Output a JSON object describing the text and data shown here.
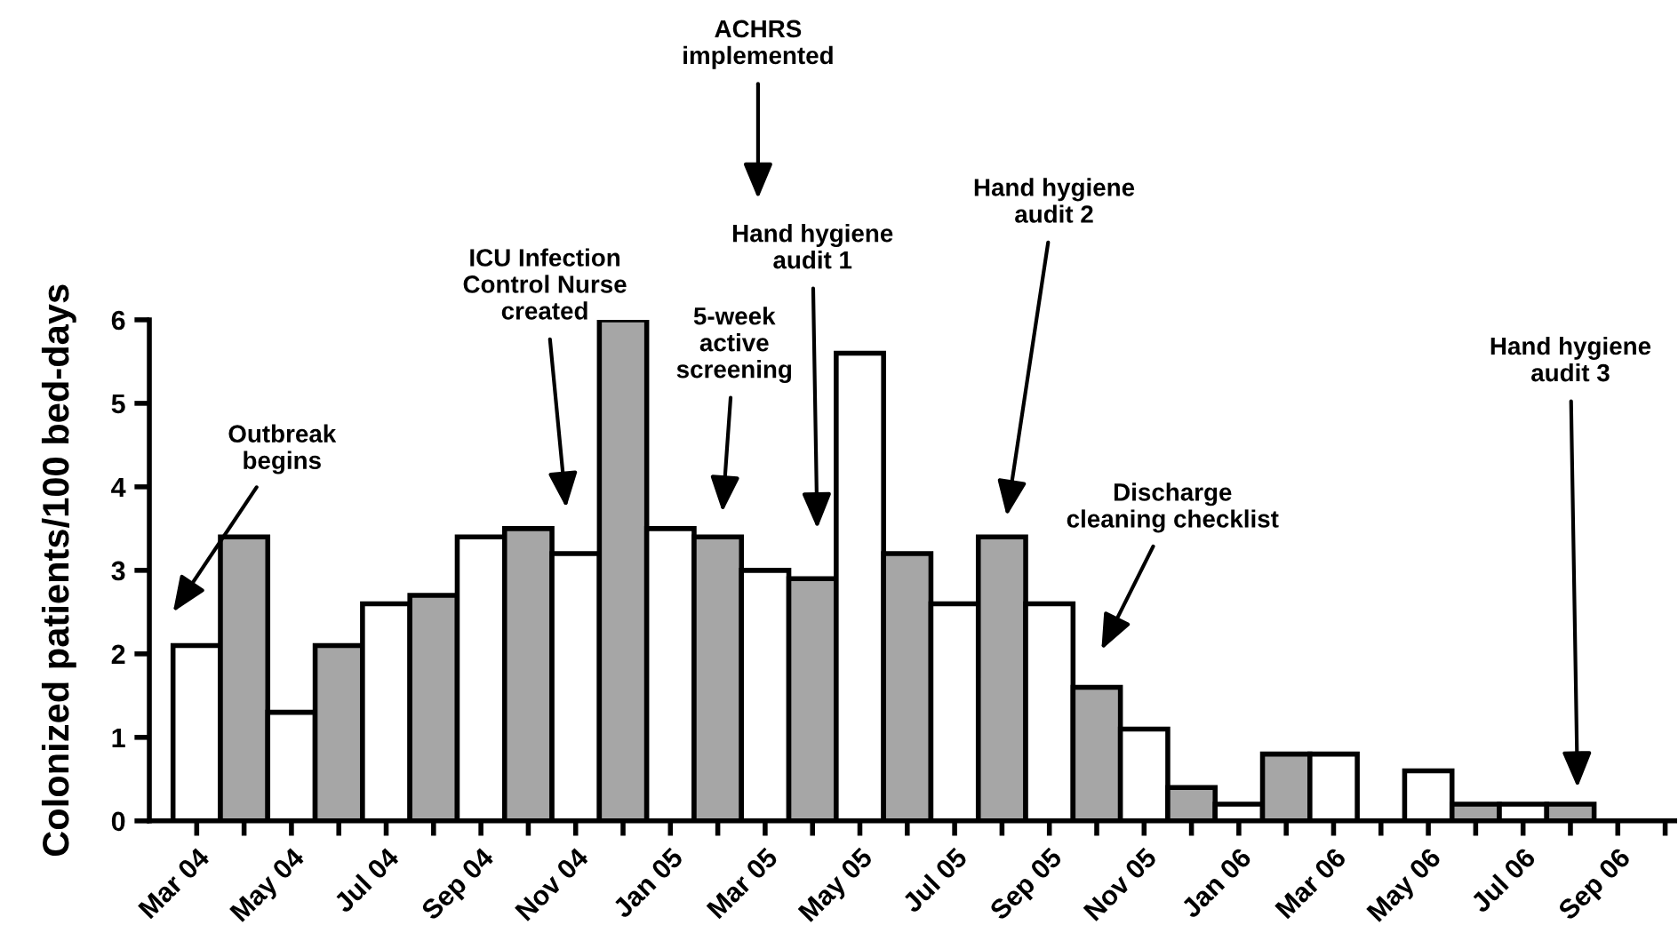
{
  "chart_data": {
    "type": "bar",
    "ylabel": "Colonized patients/100 bed-days",
    "categories": [
      "Mar 04",
      null,
      "May 04",
      null,
      "Jul 04",
      null,
      "Sep 04",
      null,
      "Nov 04",
      null,
      "Jan 05",
      null,
      "Mar 05",
      null,
      "May 05",
      null,
      "Jul 05",
      null,
      "Sep 05",
      null,
      "Nov 05",
      null,
      "Jan 06",
      null,
      "Mar 06",
      null,
      "May 06",
      null,
      "Jul 06",
      null,
      "Sep 06",
      null
    ],
    "values": [
      2.1,
      3.4,
      1.3,
      2.1,
      2.6,
      2.7,
      3.4,
      3.5,
      3.2,
      6.0,
      3.5,
      3.4,
      3.0,
      2.9,
      5.6,
      3.2,
      2.6,
      3.4,
      2.6,
      1.6,
      1.1,
      0.4,
      0.2,
      0.8,
      0.8,
      null,
      0.6,
      0.2,
      0.2,
      0.2,
      null,
      null
    ],
    "colors": [
      "#ffffff",
      "#a6a6a6",
      "#ffffff",
      "#a6a6a6",
      "#ffffff",
      "#a6a6a6",
      "#ffffff",
      "#a6a6a6",
      "#ffffff",
      "#a6a6a6",
      "#ffffff",
      "#a6a6a6",
      "#ffffff",
      "#a6a6a6",
      "#ffffff",
      "#a6a6a6",
      "#ffffff",
      "#a6a6a6",
      "#ffffff",
      "#a6a6a6",
      "#ffffff",
      "#a6a6a6",
      "#ffffff",
      "#a6a6a6",
      "#ffffff",
      "#a6a6a6",
      "#ffffff",
      "#a6a6a6",
      "#ffffff",
      "#a6a6a6",
      "#ffffff",
      "#a6a6a6"
    ],
    "ylim": [
      0,
      6
    ],
    "yticks": [
      0,
      1,
      2,
      3,
      4,
      5,
      6
    ],
    "grid": false,
    "legend": false,
    "annotations": [
      "Outbreak\nbegins",
      "ICU Infection\nControl Nurse\ncreated",
      "5-week\nactive\nscreening",
      "ACHRS\nimplemented",
      "Hand hygiene\naudit 1",
      "Hand hygiene\naudit 2",
      "Discharge\ncleaning checklist",
      "Hand hygiene\naudit 3"
    ]
  }
}
